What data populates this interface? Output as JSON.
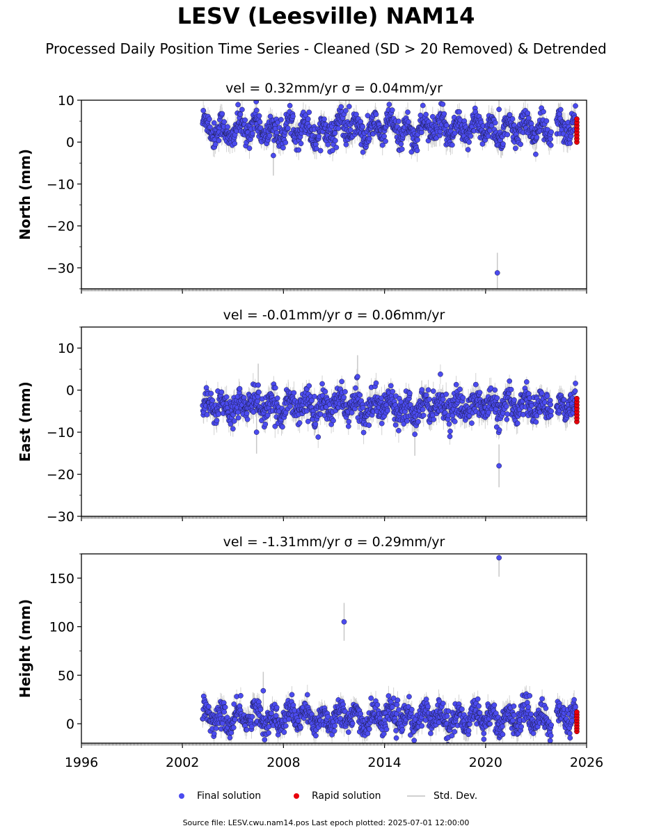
{
  "title": "LESV (Leesville) NAM14",
  "subtitle": "Processed Daily Position Time Series - Cleaned (SD > 20 Removed) & Detrended",
  "legend": {
    "final": "Final solution",
    "rapid": "Rapid solution",
    "std": "Std. Dev."
  },
  "footer": "Source file: LESV.cwu.nam14.pos  Last epoch plotted: 2025-07-01 12:00:00",
  "colors": {
    "final": "#4b4bef",
    "rapid": "#e8000b",
    "std": "#c8c8c8"
  },
  "chart_data": [
    {
      "type": "scatter",
      "title": "vel = 0.32mm/yr   σ = 0.04mm/yr",
      "ylabel": "North (mm)",
      "xlim": [
        1996,
        2026
      ],
      "ylim": [
        -35,
        10
      ],
      "yticks": [
        10,
        0,
        -10,
        -20,
        -30
      ],
      "xticks": [
        1996,
        2002,
        2008,
        2014,
        2020,
        2026
      ],
      "data_start": 2003.2,
      "data_end": 2025.5,
      "gap": [
        2023.9,
        2024.2
      ],
      "mean": 3,
      "amp": 2,
      "noise": 1.6,
      "outliers": [
        [
          2011.9,
          8.5
        ],
        [
          2011.7,
          7.5
        ],
        [
          2020.8,
          7.8
        ],
        [
          2006.4,
          7.6
        ],
        [
          2007.4,
          -3.2
        ],
        [
          2020.7,
          -31.2
        ]
      ],
      "rapid_range": [
        0,
        5.5
      ]
    },
    {
      "type": "scatter",
      "title": "vel = -0.01mm/yr   σ = 0.06mm/yr",
      "ylabel": "East (mm)",
      "xlim": [
        1996,
        2026
      ],
      "ylim": [
        -30,
        15
      ],
      "yticks": [
        10,
        0,
        -10,
        -20,
        -30
      ],
      "xticks": [
        1996,
        2002,
        2008,
        2014,
        2020,
        2026
      ],
      "data_start": 2003.2,
      "data_end": 2025.5,
      "gap": [
        2023.9,
        2024.2
      ],
      "mean": -3.8,
      "amp": 1.5,
      "noise": 1.7,
      "outliers": [
        [
          2012.4,
          3.2
        ],
        [
          2006.5,
          1.2
        ],
        [
          2006.4,
          -10
        ],
        [
          2015.8,
          -10.5
        ],
        [
          2020.8,
          -18
        ]
      ],
      "rapid_range": [
        -7.5,
        -2
      ]
    },
    {
      "type": "scatter",
      "title": "vel = -1.31mm/yr   σ = 0.29mm/yr",
      "ylabel": "Height (mm)",
      "xlabel": "",
      "xlim": [
        1996,
        2026
      ],
      "ylim": [
        -20,
        175
      ],
      "yticks": [
        150,
        100,
        50,
        0
      ],
      "xticks": [
        1996,
        2002,
        2008,
        2014,
        2020,
        2026
      ],
      "data_start": 2003.2,
      "data_end": 2025.5,
      "gap": [
        2023.9,
        2024.2
      ],
      "mean": 6,
      "amp": 8,
      "noise": 6.5,
      "outliers": [
        [
          2011.6,
          105
        ],
        [
          2020.8,
          171
        ],
        [
          2006.8,
          34
        ],
        [
          2019.9,
          -16
        ]
      ],
      "rapid_range": [
        -8,
        12
      ]
    }
  ]
}
